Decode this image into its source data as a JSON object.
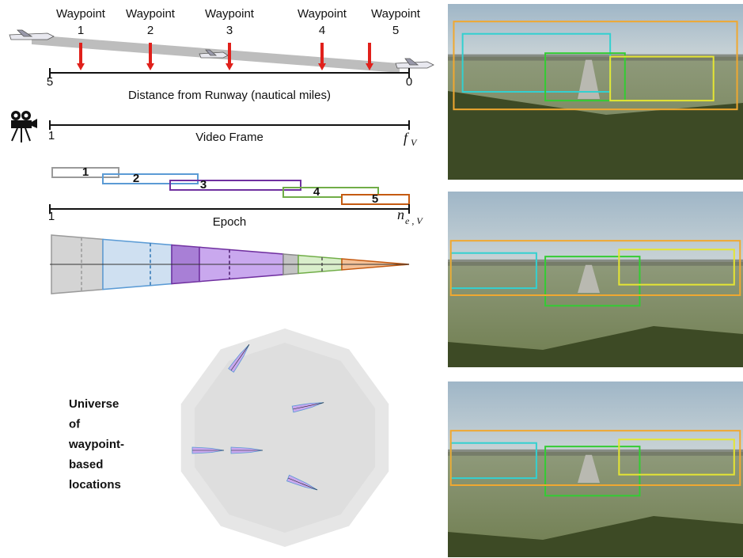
{
  "waypoints": [
    {
      "label": "Waypoint",
      "number": "1"
    },
    {
      "label": "Waypoint",
      "number": "2"
    },
    {
      "label": "Waypoint",
      "number": "3"
    },
    {
      "label": "Waypoint",
      "number": "4"
    },
    {
      "label": "Waypoint",
      "number": "5"
    }
  ],
  "distance_axis": {
    "start": "5",
    "end": "0",
    "label": "Distance from Runway (nautical miles)"
  },
  "video_axis": {
    "start": "1",
    "label": "Video Frame",
    "end_symbol": "f",
    "end_subscript": "V"
  },
  "epochs": [
    "1",
    "2",
    "3",
    "4",
    "5"
  ],
  "epoch_axis": {
    "start": "1",
    "label": "Epoch",
    "end_symbol": "n",
    "end_subscript": "e , V"
  },
  "universe_label": [
    "Universe",
    "of",
    "waypoint-",
    "based",
    "locations"
  ]
}
